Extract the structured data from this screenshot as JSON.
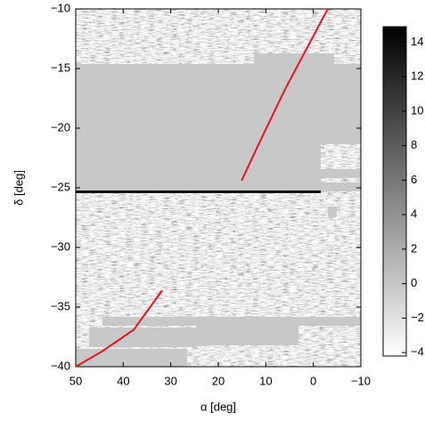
{
  "chart_data": {
    "type": "heatmap",
    "xlabel": "α [deg]",
    "ylabel": "δ [deg]",
    "xlim": [
      50,
      -10
    ],
    "ylim": [
      -40,
      -10
    ],
    "xticks": [
      {
        "value": 50,
        "label": "50"
      },
      {
        "value": 40,
        "label": "40"
      },
      {
        "value": 30,
        "label": "30"
      },
      {
        "value": 20,
        "label": "20"
      },
      {
        "value": 10,
        "label": "10"
      },
      {
        "value": 0,
        "label": "0"
      },
      {
        "value": -10,
        "label": "−10"
      }
    ],
    "yticks": [
      {
        "value": -40,
        "label": "−40"
      },
      {
        "value": -35,
        "label": "−35"
      },
      {
        "value": -30,
        "label": "−30"
      },
      {
        "value": -25,
        "label": "−25"
      },
      {
        "value": -20,
        "label": "−20"
      },
      {
        "value": -15,
        "label": "−15"
      },
      {
        "value": -10,
        "label": "−10"
      }
    ],
    "colorbar": {
      "lim": [
        -4.2,
        14.9
      ],
      "ticks": [
        {
          "value": 14,
          "label": "14"
        },
        {
          "value": 12,
          "label": "12"
        },
        {
          "value": 10,
          "label": "10"
        },
        {
          "value": 8,
          "label": "8"
        },
        {
          "value": 6,
          "label": "6"
        },
        {
          "value": 4,
          "label": "4"
        },
        {
          "value": 2,
          "label": "2"
        },
        {
          "value": 0,
          "label": "0"
        },
        {
          "value": -2,
          "label": "−2"
        },
        {
          "value": -4,
          "label": "−4"
        }
      ]
    },
    "series": [
      {
        "color": "#e8141c",
        "x": [
          -2.9,
          1.5,
          5.9,
          10.5,
          15.1,
          null,
          50,
          44.4,
          37.8,
          31.8
        ],
        "y": [
          -10.1,
          -13.4,
          -16.7,
          -20.5,
          -24.4,
          null,
          -40,
          -38.7,
          -36.9,
          -33.6
        ]
      }
    ]
  }
}
